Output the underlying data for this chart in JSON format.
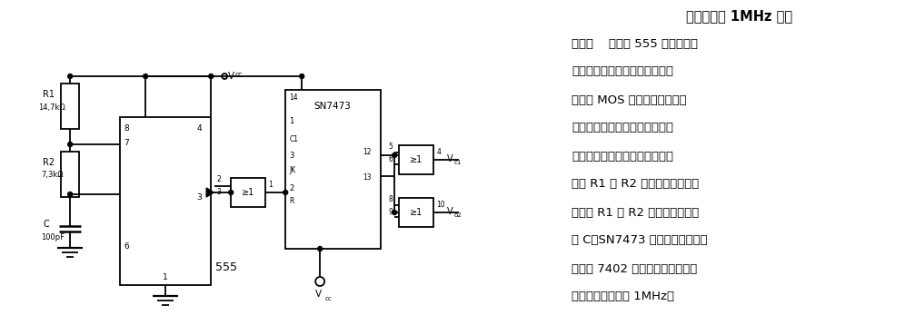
{
  "fig_width": 10.07,
  "fig_height": 3.69,
  "dpi": 100,
  "bg_color": "#ffffff",
  "line_color": "#000000",
  "line_width": 1.3,
  "title_line1": "最高频率为 1MHz 的双",
  "body_lines": [
    "相时钟    电路用 555 定时器作成",
    "振荡器，它可以产生出大多数双",
    "相动态 MOS 存储器和移位寄存",
    "器所需要的、互不交错的双相时",
    "钟脉冲。脉宽周期比取决于外接",
    "电阵 R1 和 R2 的阵値。振荡频率",
    "取决于 R1 和 R2 的阵値及定时电",
    "容 C。SN7473 触发器用来决定哪",
    "一相被 7402 或非门选通。该电路",
    "的最高工作频率为 1MHz。"
  ]
}
